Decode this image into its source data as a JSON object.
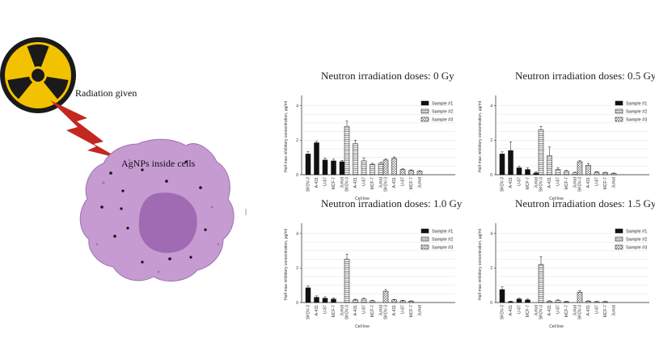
{
  "illustration": {
    "radiation_label": "Radiation given",
    "cell_label": "AgNPs inside cells",
    "colors": {
      "radiation_yellow": "#f2c200",
      "radiation_black": "#1a1a1a",
      "lightning": "#c2281f",
      "cell_fill": "#c69bd2",
      "nucleus_fill": "#a06bb3"
    },
    "icons": [
      "radiation-hazard-icon",
      "lightning-bolt-icon",
      "cell-icon"
    ]
  },
  "chart_data": [
    {
      "type": "bar",
      "title": "Neutron irradiation doses: 0 Gy",
      "ylabel": "Half-max inhibitory concentration, µg/ml",
      "xlabel": "Cell line",
      "yticks": [
        0,
        2,
        4
      ],
      "ylim": [
        0,
        4.4
      ],
      "categories": [
        "SKOV-3",
        "A-431",
        "U-87",
        "MCF-7",
        "Jurkat"
      ],
      "legend": "right",
      "series": [
        {
          "name": "Sample #1",
          "values": [
            1.2,
            1.85,
            0.85,
            0.8,
            0.75
          ],
          "errors": [
            0.15,
            0.08,
            0.12,
            0.1,
            0.08
          ]
        },
        {
          "name": "Sample #2",
          "values": [
            2.8,
            1.8,
            0.8,
            0.6,
            0.65
          ],
          "errors": [
            0.3,
            0.2,
            0.18,
            0.06,
            0.08
          ]
        },
        {
          "name": "Sample #3",
          "values": [
            0.85,
            0.95,
            0.3,
            0.25,
            0.2
          ],
          "errors": [
            0.06,
            0.08,
            0.04,
            0.03,
            0.03
          ]
        }
      ]
    },
    {
      "type": "bar",
      "title": "Neutron irradiation doses: 0.5 Gy",
      "ylabel": "Half-max inhibitory concentration, µg/ml",
      "xlabel": "Cell line",
      "yticks": [
        0,
        2,
        4
      ],
      "ylim": [
        0,
        4.4
      ],
      "categories": [
        "SKOV-3",
        "A-431",
        "U-87",
        "MCF-7",
        "Jurkat"
      ],
      "legend": "right",
      "series": [
        {
          "name": "Sample #1",
          "values": [
            1.2,
            1.4,
            0.4,
            0.3,
            0.1
          ],
          "errors": [
            0.12,
            0.5,
            0.1,
            0.1,
            0.08
          ]
        },
        {
          "name": "Sample #2",
          "values": [
            2.6,
            1.1,
            0.3,
            0.2,
            0.1
          ],
          "errors": [
            0.2,
            0.5,
            0.1,
            0.05,
            0.05
          ]
        },
        {
          "name": "Sample #3",
          "values": [
            0.75,
            0.55,
            0.15,
            0.12,
            0.08
          ],
          "errors": [
            0.06,
            0.1,
            0.03,
            0.02,
            0.02
          ]
        }
      ]
    },
    {
      "type": "bar",
      "title": "Neutron irradiation doses: 1.0 Gy",
      "ylabel": "Half-max inhibitory concentration, µg/ml",
      "xlabel": "Cell line",
      "yticks": [
        0,
        2,
        4
      ],
      "ylim": [
        0,
        4.4
      ],
      "categories": [
        "SKOV-3",
        "A-431",
        "U-87",
        "MCF-7",
        "Jurkat"
      ],
      "legend": "right",
      "series": [
        {
          "name": "Sample #1",
          "values": [
            0.85,
            0.3,
            0.25,
            0.2,
            0.0
          ],
          "errors": [
            0.1,
            0.08,
            0.08,
            0.06,
            0.0
          ]
        },
        {
          "name": "Sample #2",
          "values": [
            2.5,
            0.15,
            0.2,
            0.1,
            0.0
          ],
          "errors": [
            0.3,
            0.04,
            0.05,
            0.03,
            0.0
          ]
        },
        {
          "name": "Sample #3",
          "values": [
            0.65,
            0.15,
            0.1,
            0.08,
            0.0
          ],
          "errors": [
            0.1,
            0.03,
            0.03,
            0.02,
            0.0
          ]
        }
      ]
    },
    {
      "type": "bar",
      "title": "Neutron irradiation doses: 1.5 Gy",
      "ylabel": "Half-max inhibitory concentration, µg/ml",
      "xlabel": "Cell line",
      "yticks": [
        0,
        2,
        4
      ],
      "ylim": [
        0,
        4.4
      ],
      "categories": [
        "SKOV-3",
        "A-431",
        "U-87",
        "MCF-7",
        "Jurkat"
      ],
      "legend": "right",
      "series": [
        {
          "name": "Sample #1",
          "values": [
            0.75,
            0.05,
            0.2,
            0.15,
            0.0
          ],
          "errors": [
            0.15,
            0.03,
            0.05,
            0.05,
            0.0
          ]
        },
        {
          "name": "Sample #2",
          "values": [
            2.2,
            0.08,
            0.12,
            0.05,
            0.0
          ],
          "errors": [
            0.45,
            0.03,
            0.04,
            0.02,
            0.0
          ]
        },
        {
          "name": "Sample #3",
          "values": [
            0.6,
            0.08,
            0.05,
            0.05,
            0.0
          ],
          "errors": [
            0.08,
            0.02,
            0.02,
            0.02,
            0.0
          ]
        }
      ]
    }
  ]
}
